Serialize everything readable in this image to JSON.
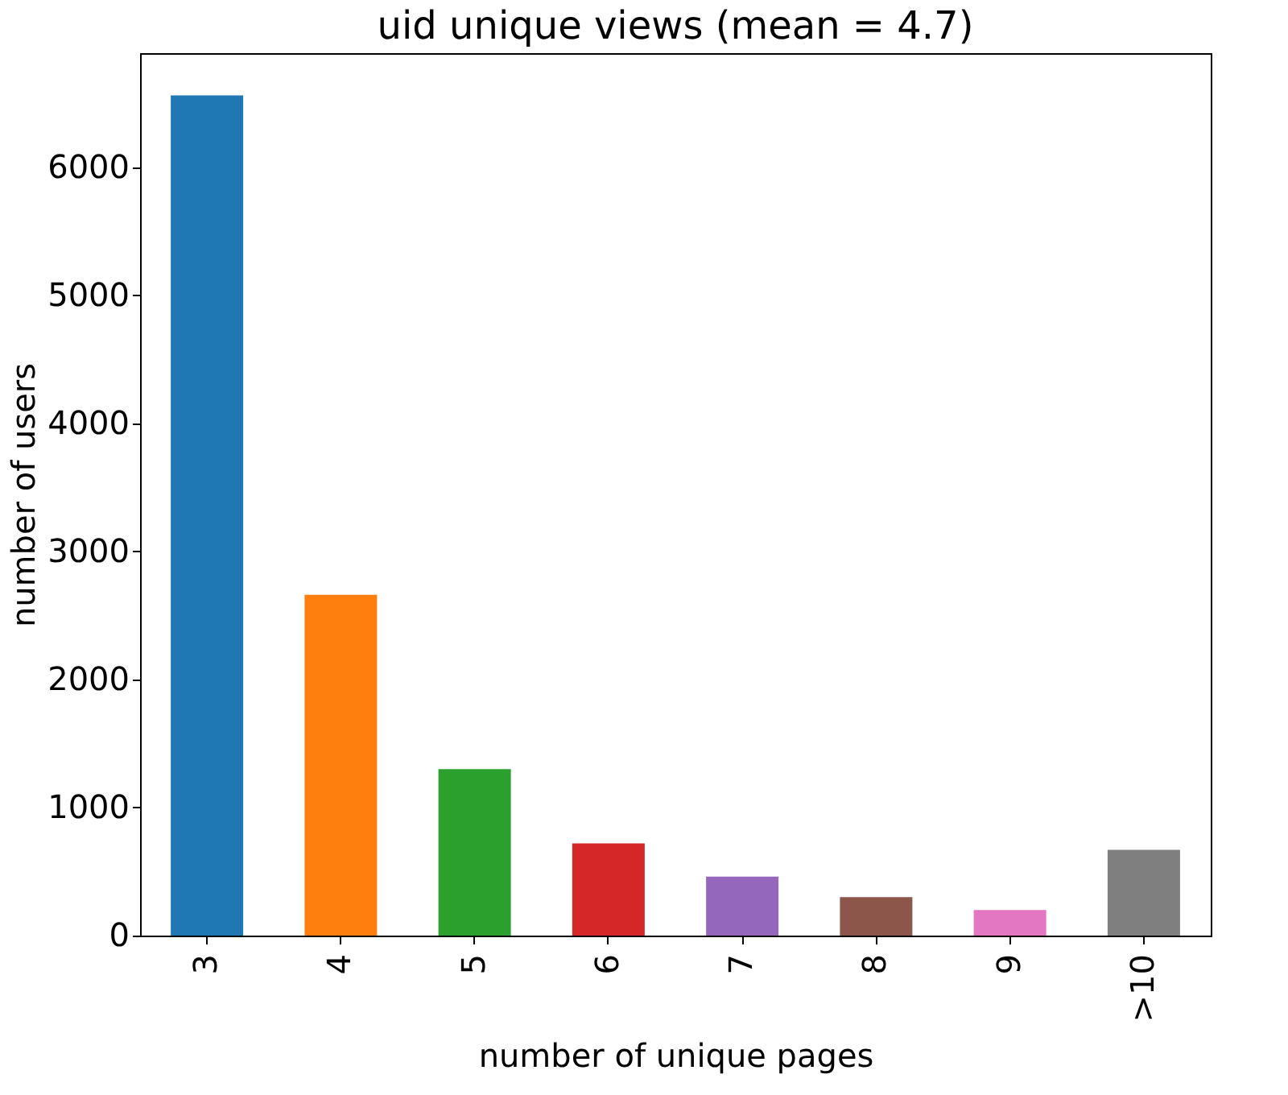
{
  "chart_data": {
    "type": "bar",
    "title": "uid unique views (mean = 4.7)",
    "xlabel": "number of unique pages",
    "ylabel": "number of users",
    "categories": [
      "3",
      "4",
      "5",
      "6",
      "7",
      "8",
      "9",
      ">10"
    ],
    "values": [
      6560,
      2660,
      1300,
      720,
      460,
      300,
      200,
      670
    ],
    "colors": [
      "#1f77b4",
      "#ff7f0e",
      "#2ca02c",
      "#d62728",
      "#9467bd",
      "#8c564b",
      "#e377c2",
      "#7f7f7f"
    ],
    "ylim": [
      0,
      6890
    ],
    "yticks": [
      0,
      1000,
      2000,
      3000,
      4000,
      5000,
      6000
    ],
    "grid": false,
    "legend": false
  }
}
